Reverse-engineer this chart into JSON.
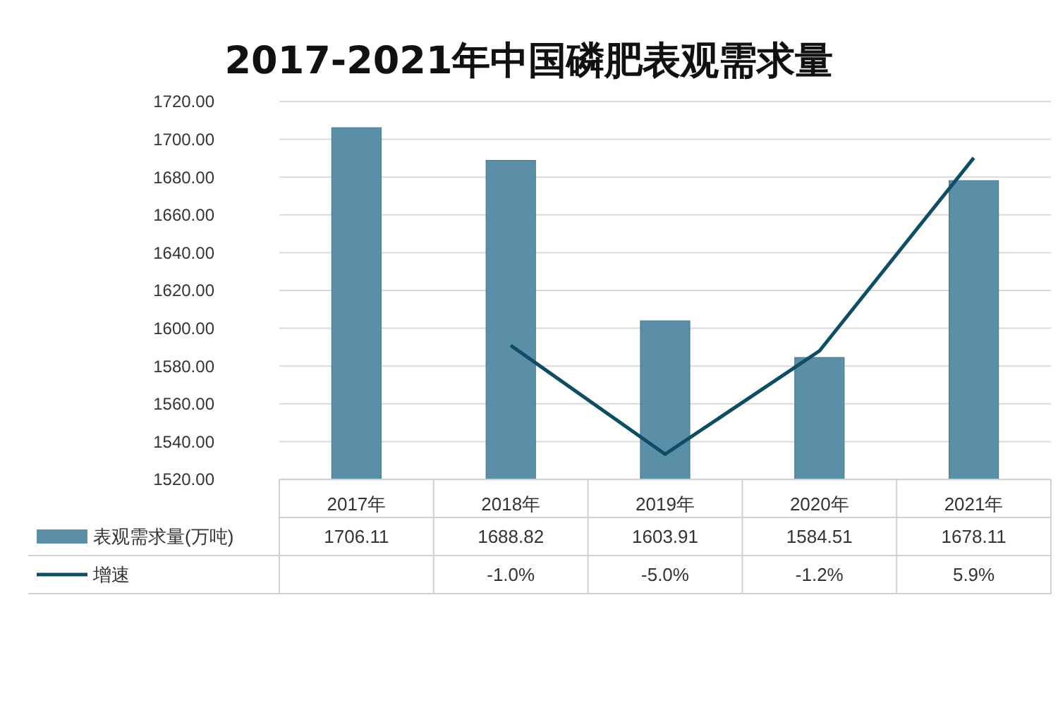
{
  "chart_data": {
    "type": "bar",
    "title": "2017-2021年中国磷肥表观需求量",
    "categories": [
      "2017年",
      "2018年",
      "2019年",
      "2020年",
      "2021年"
    ],
    "series": [
      {
        "name": "表观需求量(万吨)",
        "color": "#5b8fa8",
        "values": [
          1706.11,
          1688.82,
          1603.91,
          1584.51,
          1678.11
        ],
        "value_labels": [
          "1706.11",
          "1688.82",
          "1603.91",
          "1584.51",
          "1678.11"
        ]
      },
      {
        "name": "增速",
        "type": "line",
        "axis": "y2",
        "color": "#0e4d64",
        "values": [
          null,
          -1.0,
          -5.0,
          -1.2,
          5.9
        ],
        "value_labels": [
          null,
          "-1.0%",
          "-5.0%",
          "-1.2%",
          "5.9%"
        ]
      }
    ],
    "ylim": [
      1520,
      1720
    ],
    "yticks": [
      {
        "value": 1520,
        "label": "1520.00"
      },
      {
        "value": 1540,
        "label": "1540.00"
      },
      {
        "value": 1560,
        "label": "1560.00"
      },
      {
        "value": 1580,
        "label": "1580.00"
      },
      {
        "value": 1600,
        "label": "1600.00"
      },
      {
        "value": 1620,
        "label": "1620.00"
      },
      {
        "value": 1640,
        "label": "1640.00"
      },
      {
        "value": 1660,
        "label": "1660.00"
      },
      {
        "value": 1680,
        "label": "1680.00"
      },
      {
        "value": 1700,
        "label": "1700.00"
      },
      {
        "value": 1720,
        "label": "1720.00"
      }
    ],
    "grid": "y",
    "legend": "bottom",
    "line_style": "solid",
    "marker": "none"
  }
}
